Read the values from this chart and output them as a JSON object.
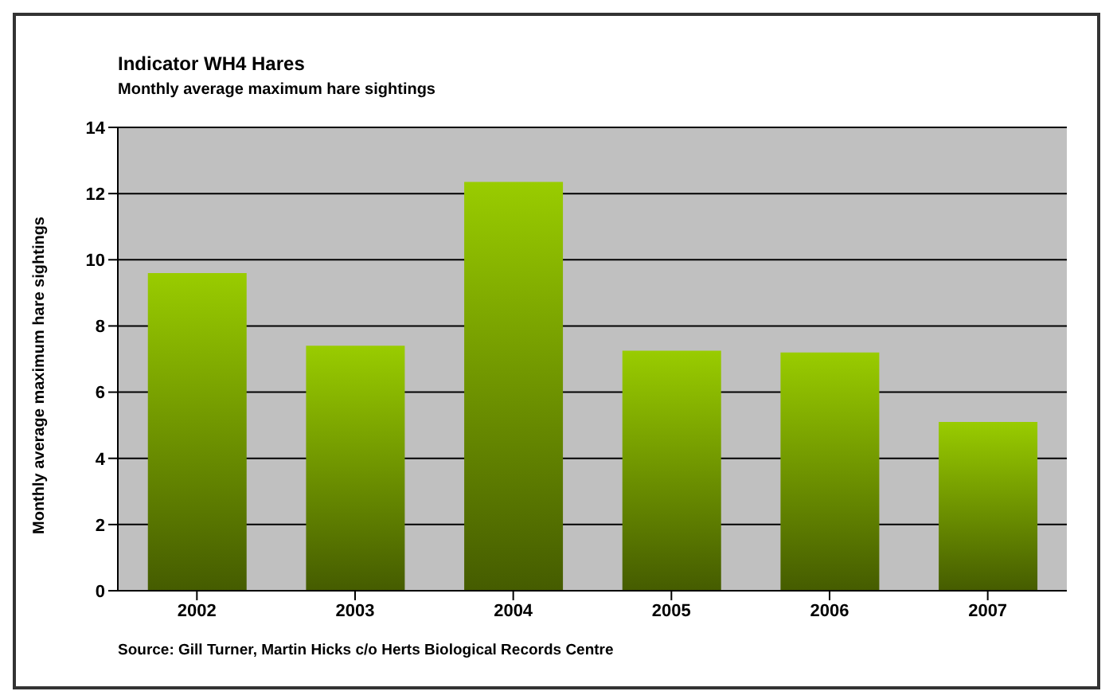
{
  "chart_data": {
    "type": "bar",
    "title": "Indicator WH4 Hares",
    "subtitle": "Monthly average maximum hare sightings",
    "ylabel": "Monthly average maximum hare sightings",
    "categories": [
      "2002",
      "2003",
      "2004",
      "2005",
      "2006",
      "2007"
    ],
    "values": [
      9.6,
      7.4,
      12.35,
      7.25,
      7.2,
      5.1
    ],
    "color": "#99cc00",
    "ylim": [
      0,
      14
    ],
    "yticks": [
      0,
      2,
      4,
      6,
      8,
      10,
      12,
      14
    ],
    "grid": "y",
    "annotations": [
      "Source: Gill Turner, Martin Hicks c/o Herts Biological Records Centre"
    ]
  }
}
